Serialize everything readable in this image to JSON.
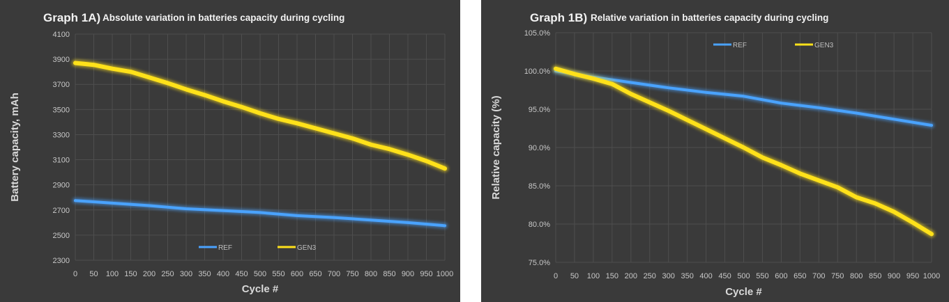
{
  "chart_data": [
    {
      "type": "line",
      "title_prefix": "Graph 1A)",
      "title": "Absolute variation in batteries capacity during cycling",
      "xlabel": "Cycle #",
      "ylabel": "Battery capacity, mAh",
      "xlim": [
        0,
        1000
      ],
      "ylim": [
        2300,
        4100
      ],
      "xticks": [
        "0",
        "50",
        "100",
        "150",
        "200",
        "250",
        "300",
        "350",
        "400",
        "450",
        "500",
        "550",
        "600",
        "650",
        "700",
        "750",
        "800",
        "850",
        "900",
        "950",
        "1000"
      ],
      "yticks": [
        "2300",
        "2500",
        "2700",
        "2900",
        "3100",
        "3300",
        "3500",
        "3700",
        "3900",
        "4100"
      ],
      "grid": true,
      "legend_position": "bottom-center",
      "series": [
        {
          "name": "REF",
          "color": "#4aa3ff",
          "x": [
            0,
            100,
            200,
            300,
            400,
            500,
            600,
            700,
            800,
            900,
            1000
          ],
          "y": [
            2775,
            2755,
            2735,
            2710,
            2695,
            2680,
            2655,
            2640,
            2620,
            2600,
            2575
          ]
        },
        {
          "name": "GEN3",
          "color": "#ffe11a",
          "x": [
            0,
            50,
            100,
            150,
            200,
            250,
            300,
            350,
            400,
            450,
            500,
            550,
            600,
            650,
            700,
            750,
            800,
            850,
            900,
            950,
            1000
          ],
          "y": [
            3870,
            3855,
            3825,
            3800,
            3755,
            3710,
            3660,
            3615,
            3565,
            3520,
            3470,
            3425,
            3390,
            3350,
            3310,
            3270,
            3220,
            3185,
            3140,
            3090,
            3030
          ]
        }
      ]
    },
    {
      "type": "line",
      "title_prefix": "Graph 1B)",
      "title": "Relative variation in batteries capacity during cycling",
      "xlabel": "Cycle #",
      "ylabel": "Relative capacity (%)",
      "xlim": [
        0,
        1000
      ],
      "ylim": [
        75,
        105
      ],
      "xticks": [
        "0",
        "50",
        "100",
        "150",
        "200",
        "250",
        "300",
        "350",
        "400",
        "450",
        "500",
        "550",
        "600",
        "650",
        "700",
        "750",
        "800",
        "850",
        "900",
        "950",
        "1000"
      ],
      "yticks": [
        "75.0%",
        "80.0%",
        "85.0%",
        "90.0%",
        "95.0%",
        "100.0%",
        "105.0%"
      ],
      "grid": true,
      "legend_position": "top-center",
      "series": [
        {
          "name": "REF",
          "color": "#4aa3ff",
          "x": [
            0,
            100,
            200,
            300,
            400,
            500,
            600,
            700,
            800,
            900,
            1000
          ],
          "y": [
            100.0,
            99.2,
            98.5,
            97.8,
            97.2,
            96.7,
            95.8,
            95.2,
            94.5,
            93.7,
            92.9
          ]
        },
        {
          "name": "GEN3",
          "color": "#ffe11a",
          "x": [
            0,
            50,
            100,
            150,
            200,
            250,
            300,
            350,
            400,
            450,
            500,
            550,
            600,
            650,
            700,
            750,
            800,
            850,
            900,
            950,
            1000
          ],
          "y": [
            100.3,
            99.6,
            99.0,
            98.3,
            97.0,
            95.9,
            94.8,
            93.6,
            92.4,
            91.2,
            90.0,
            88.7,
            87.7,
            86.6,
            85.7,
            84.8,
            83.5,
            82.7,
            81.6,
            80.2,
            78.7
          ]
        }
      ]
    }
  ]
}
